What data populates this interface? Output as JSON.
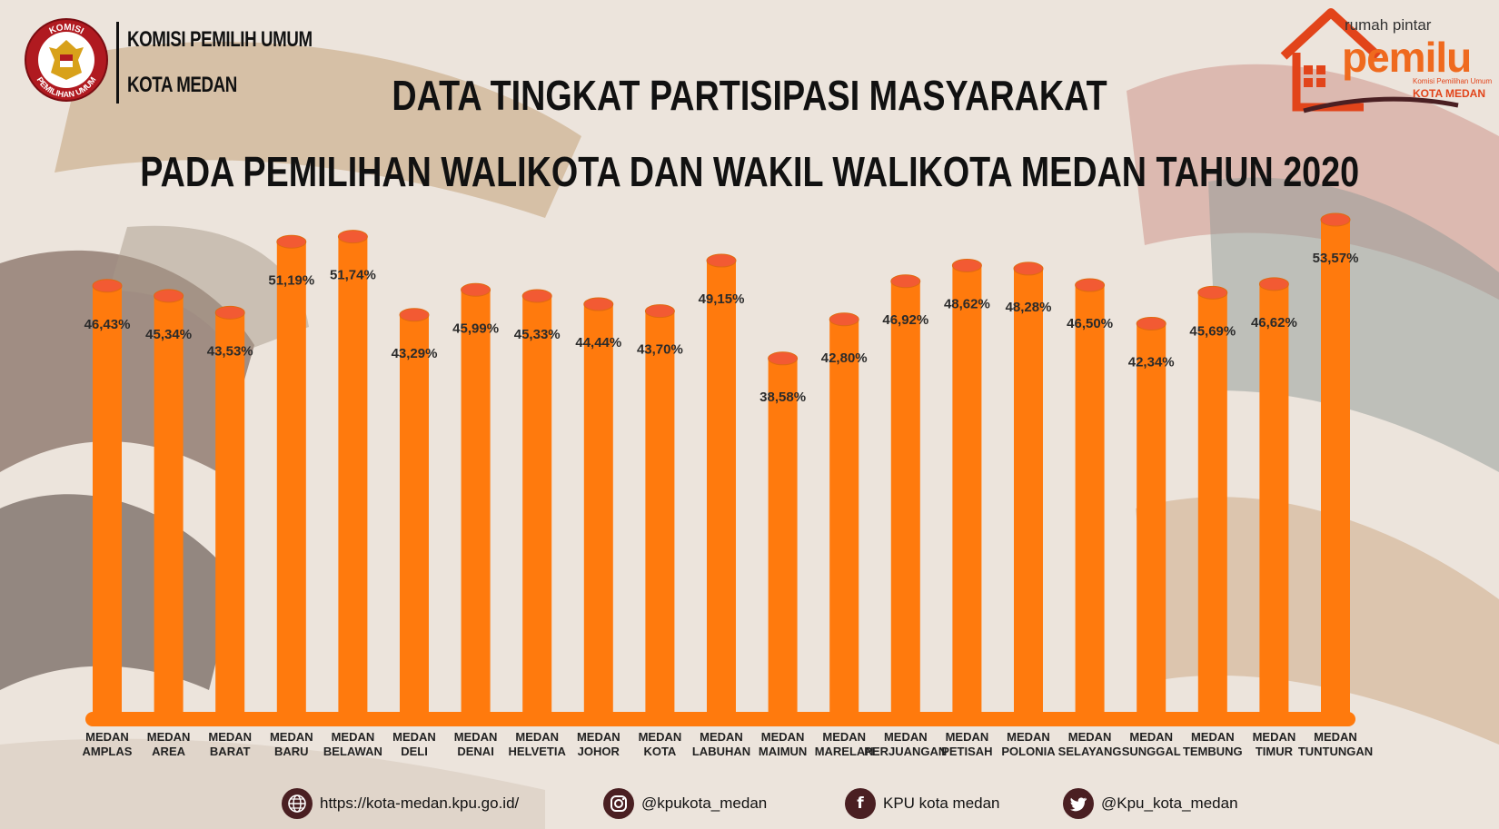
{
  "header": {
    "org_line1": "KOMISI PEMILIH UMUM",
    "org_line2": "KOTA MEDAN",
    "logo_top_text": "KOMISI",
    "logo_bottom_text": "PEMILIHAN UMUM",
    "title_line1": "DATA TINGKAT PARTISIPASI MASYARAKAT",
    "title_line2": "PADA PEMILIHAN WALIKOTA DAN WAKIL WALIKOTA MEDAN TAHUN 2020"
  },
  "brand": {
    "top": "rumah pintar",
    "big": "pemilu",
    "sub1": "Komisi Pemilihan Umum",
    "sub2": "KOTA MEDAN",
    "color": "#ef6a1e"
  },
  "colors": {
    "bar": "#ff7a0d",
    "bar_top": "#f25a33",
    "bar_edge": "#e06a10",
    "icon_bg": "#4a1f22"
  },
  "chart_data": {
    "type": "bar",
    "title": "DATA TINGKAT PARTISIPASI MASYARAKAT PADA PEMILIHAN WALIKOTA DAN WAKIL WALIKOTA MEDAN TAHUN 2020",
    "categories": [
      [
        "MEDAN",
        "AMPLAS"
      ],
      [
        "MEDAN",
        "AREA"
      ],
      [
        "MEDAN",
        "BARAT"
      ],
      [
        "MEDAN",
        "BARU"
      ],
      [
        "MEDAN",
        "BELAWAN"
      ],
      [
        "MEDAN",
        "DELI"
      ],
      [
        "MEDAN",
        "DENAI"
      ],
      [
        "MEDAN",
        "HELVETIA"
      ],
      [
        "MEDAN",
        "JOHOR"
      ],
      [
        "MEDAN",
        "KOTA"
      ],
      [
        "MEDAN",
        "LABUHAN"
      ],
      [
        "MEDAN",
        "MAIMUN"
      ],
      [
        "MEDAN",
        "MARELAN"
      ],
      [
        "MEDAN",
        "PERJUANGAN"
      ],
      [
        "MEDAN",
        "PETISAH"
      ],
      [
        "MEDAN",
        "POLONIA"
      ],
      [
        "MEDAN",
        "SELAYANG"
      ],
      [
        "MEDAN",
        "SUNGGAL"
      ],
      [
        "MEDAN",
        "TEMBUNG"
      ],
      [
        "MEDAN",
        "TIMUR"
      ],
      [
        "MEDAN",
        "TUNTUNGAN"
      ]
    ],
    "values": [
      46.43,
      45.34,
      43.53,
      51.19,
      51.74,
      43.29,
      45.99,
      45.33,
      44.44,
      43.7,
      49.15,
      38.58,
      42.8,
      46.92,
      48.62,
      48.28,
      46.5,
      42.34,
      45.69,
      46.62,
      53.57
    ],
    "value_labels": [
      "46,43%",
      "45,34%",
      "43,53%",
      "51,19%",
      "51,74%",
      "43,29%",
      "45,99%",
      "45,33%",
      "44,44%",
      "43,70%",
      "49,15%",
      "38,58%",
      "42,80%",
      "46,92%",
      "48,62%",
      "48,28%",
      "46,50%",
      "42,34%",
      "45,69%",
      "46,62%",
      "53,57%"
    ],
    "ylim": [
      0,
      53.57
    ],
    "grid": false,
    "legend": "none"
  },
  "footer": {
    "website": "https://kota-medan.kpu.go.id/",
    "instagram": "@kpukota_medan",
    "facebook": "KPU kota medan",
    "twitter": "@Kpu_kota_medan",
    "website_icon": "globe-icon",
    "instagram_icon": "instagram-icon",
    "facebook_icon": "facebook-icon",
    "twitter_icon": "twitter-icon"
  }
}
